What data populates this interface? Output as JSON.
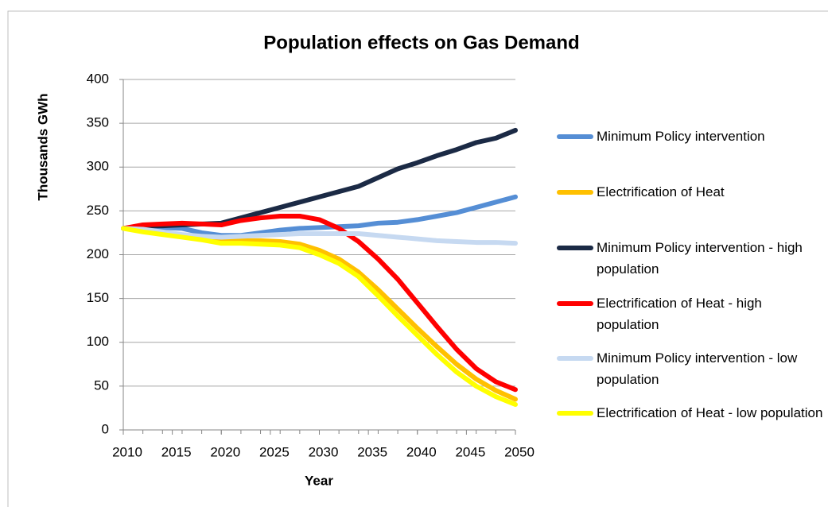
{
  "chart_data": {
    "type": "line",
    "title": "Population effects on Gas Demand",
    "x_label": "Year",
    "y_label": "Thousands GWh",
    "x": [
      2010,
      2012,
      2014,
      2016,
      2018,
      2020,
      2022,
      2024,
      2026,
      2028,
      2030,
      2032,
      2034,
      2036,
      2038,
      2040,
      2042,
      2044,
      2046,
      2048,
      2050
    ],
    "series": [
      {
        "name": "Minimum Policy intervention",
        "color": "#558ed5",
        "values": [
          230,
          232,
          231,
          230,
          225,
          222,
          222,
          225,
          228,
          230,
          231,
          232,
          233,
          236,
          237,
          240,
          244,
          248,
          254,
          260,
          266
        ]
      },
      {
        "name": "Electrification of Heat",
        "color": "#ffc000",
        "values": [
          230,
          228,
          225,
          222,
          219,
          216,
          216,
          216,
          215,
          212,
          205,
          195,
          180,
          160,
          138,
          116,
          95,
          75,
          58,
          45,
          35
        ]
      },
      {
        "name": "Minimum Policy intervention - high population",
        "color": "#1b2a45",
        "values": [
          230,
          233,
          233,
          234,
          235,
          236,
          242,
          248,
          254,
          260,
          266,
          272,
          278,
          288,
          298,
          305,
          313,
          320,
          328,
          333,
          342
        ]
      },
      {
        "name": "Electrification of Heat - high population",
        "color": "#ff0000",
        "values": [
          230,
          234,
          235,
          236,
          235,
          234,
          239,
          242,
          244,
          244,
          240,
          230,
          215,
          195,
          172,
          145,
          118,
          92,
          70,
          55,
          46
        ]
      },
      {
        "name": "Minimum Policy intervention - low population",
        "color": "#c6d9f1",
        "values": [
          230,
          229,
          226,
          223,
          221,
          220,
          221,
          222,
          223,
          224,
          224,
          224,
          224,
          222,
          220,
          218,
          216,
          215,
          214,
          214,
          213
        ]
      },
      {
        "name": "Electrification of Heat - low population",
        "color": "#ffff00",
        "values": [
          230,
          226,
          223,
          220,
          217,
          213,
          213,
          212,
          211,
          208,
          200,
          190,
          175,
          153,
          130,
          108,
          86,
          66,
          50,
          38,
          29
        ]
      }
    ],
    "xlim": [
      2010,
      2050
    ],
    "xticks": [
      2010,
      2015,
      2020,
      2025,
      2030,
      2035,
      2040,
      2045,
      2050
    ],
    "ylim": [
      0,
      400
    ],
    "yticks": [
      0,
      50,
      100,
      150,
      200,
      250,
      300,
      350,
      400
    ],
    "grid": true,
    "legend": "right"
  }
}
